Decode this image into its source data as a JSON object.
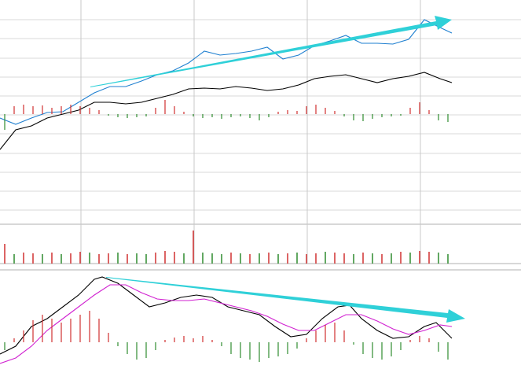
{
  "chart_data": [
    {
      "type": "line",
      "xlim": [
        0,
        663
      ],
      "xticks": [
        103,
        247,
        391,
        535
      ],
      "ylim": [
        0,
        285
      ],
      "yticks": [
        18,
        42,
        66,
        90,
        115,
        139,
        163,
        187,
        211,
        236,
        260
      ],
      "grid": true,
      "y2lim": [
        -140,
        145
      ],
      "series": [
        {
          "color": "#1e7fd0",
          "x": [
            0,
            20,
            40,
            60,
            80,
            100,
            120,
            140,
            160,
            180,
            200,
            220,
            240,
            260,
            280,
            300,
            320,
            340,
            360,
            380,
            400,
            420,
            440,
            460,
            480,
            500,
            520,
            540,
            560,
            575
          ],
          "values": [
            135,
            127,
            135,
            142,
            143,
            155,
            167,
            175,
            175,
            182,
            190,
            195,
            205,
            220,
            215,
            217,
            220,
            225,
            210,
            215,
            227,
            233,
            240,
            230,
            230,
            229,
            235,
            260,
            250,
            243
          ]
        },
        {
          "color": "#000000",
          "x": [
            0,
            20,
            40,
            60,
            80,
            100,
            120,
            140,
            160,
            180,
            200,
            220,
            240,
            260,
            280,
            300,
            320,
            340,
            360,
            380,
            400,
            420,
            440,
            460,
            480,
            500,
            520,
            540,
            560,
            575
          ],
          "values": [
            95,
            120,
            125,
            135,
            140,
            145,
            155,
            155,
            153,
            155,
            160,
            165,
            172,
            173,
            172,
            175,
            173,
            170,
            172,
            177,
            185,
            188,
            190,
            185,
            180,
            185,
            188,
            193,
            185,
            180
          ]
        },
        {
          "type": "histogram",
          "axis": "y2",
          "up_color": "#d03030",
          "down_color": "#2e8b2e",
          "x": [
            6,
            18,
            30,
            42,
            54,
            66,
            78,
            90,
            102,
            114,
            126,
            138,
            150,
            162,
            174,
            186,
            198,
            210,
            222,
            234,
            246,
            258,
            270,
            282,
            294,
            306,
            318,
            330,
            342,
            354,
            366,
            378,
            390,
            402,
            414,
            426,
            438,
            450,
            462,
            474,
            486,
            498,
            510,
            522,
            534,
            546,
            558,
            570
          ],
          "values": [
            -20,
            10,
            12,
            10,
            11,
            8,
            10,
            12,
            10,
            8,
            5,
            -2,
            -4,
            -5,
            -4,
            -3,
            8,
            18,
            10,
            3,
            -3,
            -5,
            -4,
            -6,
            -4,
            -3,
            -5,
            -8,
            -4,
            3,
            5,
            4,
            10,
            12,
            8,
            4,
            -3,
            -8,
            -9,
            -6,
            -4,
            -3,
            -2,
            8,
            15,
            5,
            -8,
            -10
          ]
        }
      ]
    },
    {
      "type": "bar",
      "xlim": [
        0,
        663
      ],
      "ylim": [
        0,
        50
      ],
      "x": [
        6,
        18,
        30,
        42,
        54,
        66,
        78,
        90,
        102,
        114,
        126,
        138,
        150,
        162,
        174,
        186,
        198,
        210,
        222,
        234,
        246,
        258,
        270,
        282,
        294,
        306,
        318,
        330,
        342,
        354,
        366,
        378,
        390,
        402,
        414,
        426,
        438,
        450,
        462,
        474,
        486,
        498,
        510,
        522,
        534,
        546,
        558,
        570
      ],
      "series": [
        {
          "color": "#d03030",
          "values": [
            25,
            null,
            14,
            13,
            null,
            14,
            null,
            13,
            15,
            null,
            12,
            13,
            null,
            12,
            null,
            null,
            14,
            16,
            15,
            null,
            42,
            null,
            null,
            null,
            14,
            null,
            12,
            null,
            14,
            null,
            13,
            null,
            12,
            13,
            null,
            14,
            13,
            null,
            14,
            null,
            12,
            null,
            15,
            null,
            16,
            15,
            null,
            null
          ]
        },
        {
          "color": "#2e8b2e",
          "values": [
            null,
            12,
            null,
            null,
            12,
            null,
            12,
            null,
            null,
            14,
            null,
            null,
            14,
            null,
            13,
            12,
            null,
            null,
            null,
            13,
            null,
            14,
            13,
            12,
            null,
            13,
            null,
            13,
            null,
            12,
            null,
            14,
            null,
            null,
            15,
            null,
            null,
            12,
            null,
            13,
            null,
            13,
            null,
            14,
            null,
            null,
            14,
            12
          ]
        }
      ]
    },
    {
      "type": "line",
      "xlim": [
        0,
        663
      ],
      "ylim": [
        -34,
        90
      ],
      "series": [
        {
          "color": "#000000",
          "x": [
            0,
            20,
            40,
            60,
            80,
            100,
            120,
            130,
            150,
            170,
            190,
            210,
            230,
            250,
            270,
            290,
            310,
            330,
            350,
            370,
            390,
            410,
            430,
            445,
            460,
            480,
            500,
            520,
            540,
            555,
            575
          ],
          "values": [
            -15,
            -5,
            20,
            30,
            45,
            60,
            80,
            83,
            75,
            60,
            45,
            50,
            57,
            60,
            57,
            45,
            40,
            35,
            20,
            7,
            10,
            30,
            45,
            47,
            30,
            15,
            5,
            7,
            20,
            25,
            5
          ]
        },
        {
          "color": "#d020d0",
          "x": [
            0,
            20,
            40,
            60,
            80,
            100,
            120,
            140,
            160,
            180,
            200,
            220,
            240,
            260,
            280,
            300,
            320,
            340,
            360,
            380,
            400,
            420,
            440,
            460,
            480,
            500,
            520,
            540,
            560,
            575
          ],
          "values": [
            -27,
            -20,
            -5,
            15,
            30,
            45,
            60,
            73,
            73,
            63,
            55,
            53,
            53,
            55,
            50,
            45,
            40,
            33,
            23,
            15,
            15,
            25,
            35,
            35,
            27,
            17,
            10,
            15,
            22,
            20
          ]
        },
        {
          "type": "histogram",
          "up_color": "#d03030",
          "down_color": "#2e8b2e",
          "x": [
            6,
            18,
            30,
            42,
            54,
            66,
            78,
            90,
            102,
            114,
            126,
            138,
            150,
            162,
            174,
            186,
            198,
            210,
            222,
            234,
            246,
            258,
            270,
            282,
            294,
            306,
            318,
            330,
            342,
            354,
            366,
            378,
            390,
            402,
            414,
            426,
            438,
            450,
            462,
            474,
            486,
            498,
            510,
            522,
            534,
            546,
            558,
            570
          ],
          "values": [
            -10,
            5,
            15,
            28,
            35,
            30,
            25,
            30,
            35,
            40,
            30,
            12,
            -5,
            -15,
            -22,
            -20,
            -10,
            3,
            6,
            8,
            5,
            8,
            3,
            -5,
            -15,
            -20,
            -22,
            -25,
            -20,
            -18,
            -15,
            -8,
            5,
            15,
            22,
            25,
            15,
            -3,
            -15,
            -20,
            -22,
            -18,
            -10,
            3,
            8,
            5,
            -12,
            -22
          ]
        }
      ]
    }
  ]
}
